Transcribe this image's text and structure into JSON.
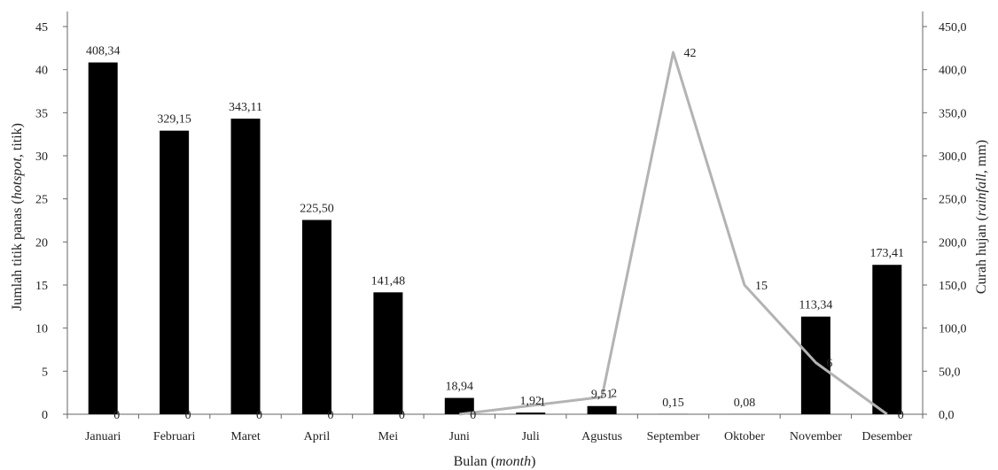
{
  "chart_data": {
    "type": "bar+line",
    "categories": [
      "Januari",
      "Februari",
      "Maret",
      "April",
      "Mei",
      "Juni",
      "Juli",
      "Agustus",
      "September",
      "Oktober",
      "November",
      "Desember"
    ],
    "bar_series": {
      "axis": "right",
      "values": [
        408.34,
        329.15,
        343.11,
        225.5,
        141.48,
        18.94,
        1.92,
        9.51,
        0.15,
        0.08,
        113.34,
        173.41
      ],
      "labels": [
        "408,34",
        "329,15",
        "343,11",
        "225,50",
        "141,48",
        "18,94",
        "1,92",
        "9,51",
        "0,15",
        "0,08",
        "113,34",
        "173,41"
      ],
      "color": "#000000"
    },
    "line_series": {
      "axis": "left",
      "values": [
        0,
        0,
        0,
        0,
        0,
        0,
        1,
        2,
        42,
        15,
        6,
        0
      ],
      "labels": [
        "0",
        "0",
        "0",
        "0",
        "0",
        "0",
        "1",
        "2",
        "42",
        "15",
        "6",
        "0"
      ],
      "color": "#b3b3b3"
    },
    "left_axis": {
      "label_pre": "Jumlah titik panas (",
      "label_italic": "hotspot,",
      "label_post": " titik)",
      "ylim": [
        0,
        45
      ],
      "ticks": [
        "0",
        "5",
        "10",
        "15",
        "20",
        "25",
        "30",
        "35",
        "40",
        "45"
      ]
    },
    "right_axis": {
      "label_pre": "Curah hujan (",
      "label_italic": "rainfall,",
      "label_post": " mm)",
      "ylim": [
        0,
        450
      ],
      "ticks": [
        "0,0",
        "50,0",
        "100,0",
        "150,0",
        "200,0",
        "250,0",
        "300,0",
        "350,0",
        "400,0",
        "450,0"
      ]
    },
    "x_axis": {
      "label_pre": "Bulan (",
      "label_italic": "month",
      "label_post": ")"
    },
    "grid": false
  }
}
